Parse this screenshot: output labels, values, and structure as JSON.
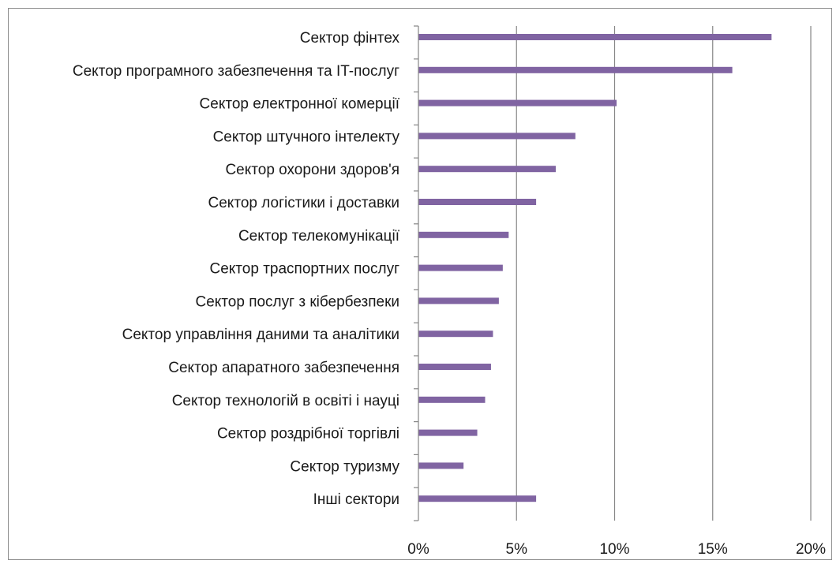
{
  "chart_data": {
    "type": "bar",
    "orientation": "horizontal",
    "title": "",
    "xlabel": "",
    "ylabel": "",
    "categories": [
      "Сектор фінтех",
      "Сектор програмного забезпечення та IT-послуг",
      "Сектор електронної комерції",
      "Сектор штучного інтелекту",
      "Сектор охорони здоров'я",
      "Сектор логістики і доставки",
      "Сектор телекомунікації",
      "Сектор траспортних послуг",
      "Сектор послуг з кібербезпеки",
      "Сектор управління даними та аналітики",
      "Сектор апаратного забезпечення",
      "Сектор технологій в освіті і науці",
      "Сектор роздрібної торгівлі",
      "Сектор туризму",
      "Інші сектори"
    ],
    "values": [
      18,
      16,
      10.1,
      8,
      7,
      6,
      4.6,
      4.3,
      4.1,
      3.8,
      3.7,
      3.4,
      3,
      2.3,
      6
    ],
    "xlim": [
      0,
      20
    ],
    "ticks": [
      0,
      5,
      10,
      15,
      20
    ],
    "tick_labels": [
      "0%",
      "5%",
      "10%",
      "15%",
      "20%"
    ],
    "grid": "vertical",
    "legend": "none",
    "bar_color": "#8064a2",
    "grid_color": "#868686",
    "axis_color": "#868686"
  }
}
